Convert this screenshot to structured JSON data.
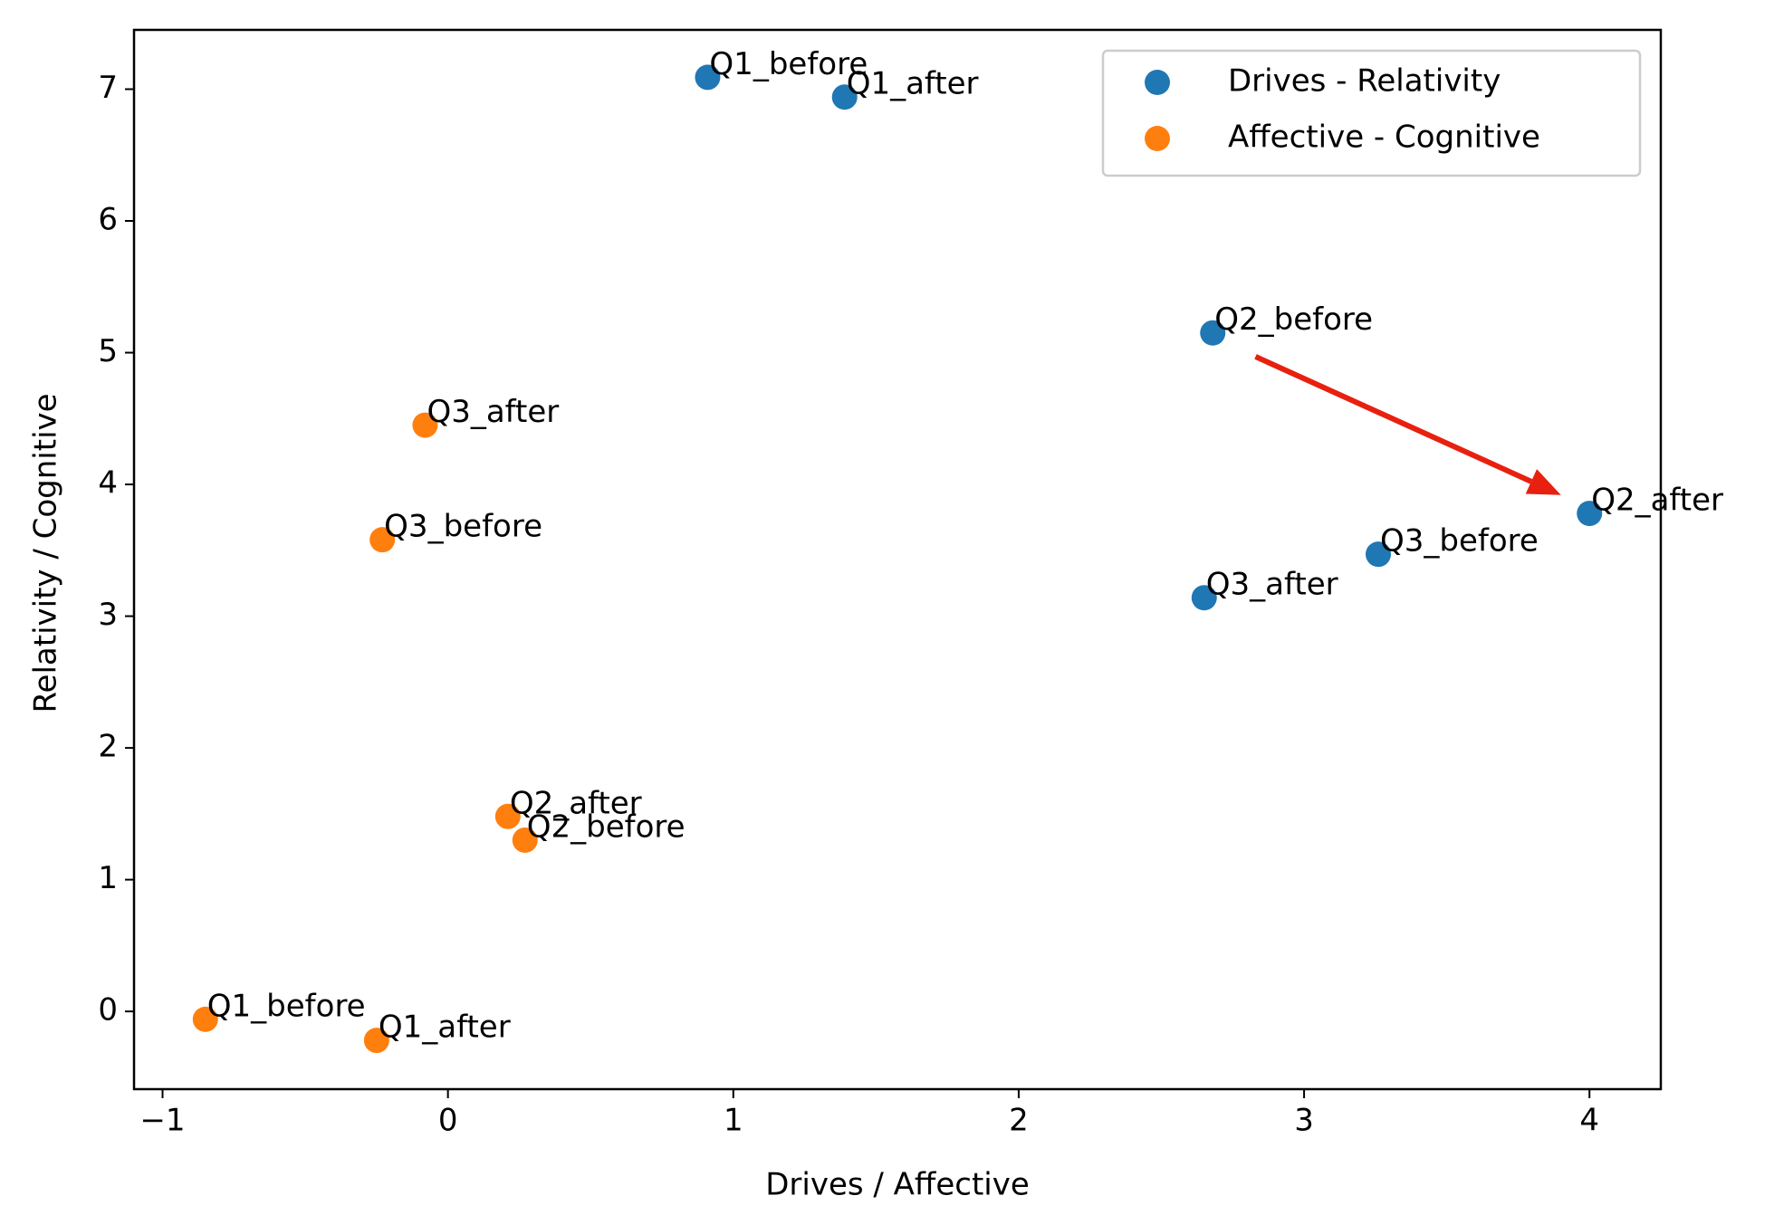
{
  "chart_data": {
    "type": "scatter",
    "xlabel": "Drives / Affective",
    "ylabel": "Relativity / Cognitive",
    "xlim": [
      -1.1,
      4.25
    ],
    "ylim": [
      -0.59,
      7.45
    ],
    "xticks": [
      {
        "value": -1,
        "label": "−1"
      },
      0,
      1,
      2,
      3,
      4
    ],
    "yticks": [
      0,
      1,
      2,
      3,
      4,
      5,
      6,
      7
    ],
    "legend": "upper right",
    "series": [
      {
        "name": "Drives - Relativity",
        "color": "#1f77b4",
        "labels": [
          "Q1_before",
          "Q1_after",
          "Q2_before",
          "Q2_after",
          "Q3_before",
          "Q3_after"
        ],
        "x": [
          0.91,
          1.39,
          2.68,
          4.0,
          3.26,
          2.65
        ],
        "values": [
          7.09,
          6.94,
          5.15,
          3.78,
          3.47,
          3.14
        ]
      },
      {
        "name": "Affective - Cognitive",
        "color": "#ff7f0e",
        "labels": [
          "Q1_before",
          "Q1_after",
          "Q2_before",
          "Q2_after",
          "Q3_before",
          "Q3_after"
        ],
        "x": [
          -0.85,
          -0.25,
          0.27,
          0.21,
          -0.23,
          -0.08
        ],
        "values": [
          -0.06,
          -0.22,
          1.3,
          1.48,
          3.58,
          4.45
        ]
      }
    ],
    "arrows": [
      {
        "xytext": [
          2.83,
          4.97
        ],
        "xy": [
          3.9,
          3.92
        ],
        "color": "#e8200f"
      }
    ]
  }
}
